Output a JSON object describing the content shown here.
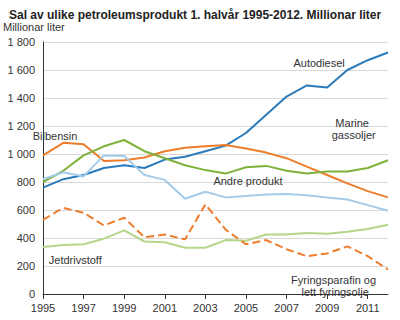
{
  "chart_data": {
    "type": "line",
    "title": "Sal av ulike petroleumsprodukt 1. halvår 1995-2012. Millionar liter",
    "y_label": "Millionar liter",
    "x": [
      1995,
      1996,
      1997,
      1998,
      1999,
      2000,
      2001,
      2002,
      2003,
      2004,
      2005,
      2006,
      2007,
      2008,
      2009,
      2010,
      2011,
      2012
    ],
    "xlim": [
      1995,
      2012
    ],
    "xticks": [
      1995,
      1997,
      1999,
      2001,
      2003,
      2005,
      2007,
      2009,
      2011
    ],
    "ylim": [
      0,
      1800
    ],
    "yticks": [
      0,
      200,
      400,
      600,
      800,
      {
        "value": 1000,
        "label": "1 000"
      },
      {
        "value": 1200,
        "label": "1 200"
      },
      {
        "value": 1400,
        "label": "1 400"
      },
      {
        "value": 1600,
        "label": "1 600"
      },
      {
        "value": 1800,
        "label": "1 800"
      }
    ],
    "grid": true,
    "series": [
      {
        "name": "Autodiesel",
        "color": "#2b7bba",
        "line_style": "solid",
        "values": [
          760,
          820,
          850,
          900,
          920,
          900,
          960,
          980,
          1020,
          1060,
          1150,
          1280,
          1410,
          1490,
          1475,
          1600,
          1670,
          1725
        ]
      },
      {
        "name": "Bilbensin",
        "color": "#ee7d2b",
        "line_style": "solid",
        "values": [
          990,
          1080,
          1070,
          950,
          955,
          975,
          1020,
          1045,
          1055,
          1065,
          1040,
          1010,
          970,
          910,
          850,
          790,
          735,
          690
        ]
      },
      {
        "name": "Marine gassoljer",
        "color": "#7fb23a",
        "line_style": "solid",
        "values": [
          800,
          880,
          990,
          1055,
          1100,
          1020,
          970,
          920,
          885,
          860,
          905,
          915,
          880,
          860,
          875,
          875,
          900,
          955
        ]
      },
      {
        "name": "Andre produkt",
        "color": "#a4cbe8",
        "line_style": "solid",
        "values": [
          820,
          870,
          840,
          990,
          985,
          850,
          815,
          680,
          730,
          690,
          700,
          710,
          715,
          705,
          690,
          675,
          635,
          595
        ]
      },
      {
        "name": "Jetdrivstoff",
        "color": "#b5d68a",
        "line_style": "solid",
        "values": [
          335,
          350,
          355,
          395,
          455,
          375,
          370,
          330,
          330,
          385,
          380,
          425,
          425,
          435,
          430,
          445,
          465,
          495
        ]
      },
      {
        "name": "Fyringsparafin og lett fyringsolje",
        "color": "#ee7d2b",
        "line_style": "dashed",
        "values": [
          530,
          615,
          580,
          490,
          545,
          405,
          425,
          390,
          640,
          460,
          355,
          385,
          320,
          270,
          290,
          340,
          270,
          175
        ]
      }
    ]
  }
}
